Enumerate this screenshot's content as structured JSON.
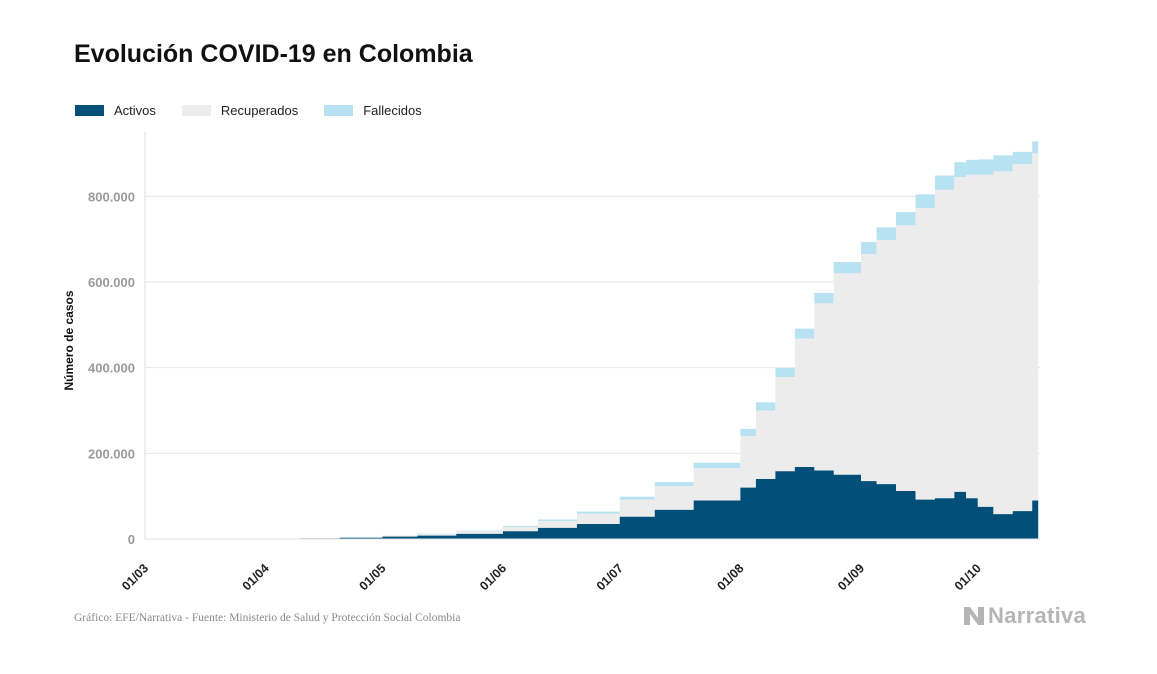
{
  "title": "Evolución COVID-19 en Colombia",
  "source": "Gráfico: EFE/Narrativa - Fuente: Ministerio de Salud y Protección Social Colombia",
  "logo_text": "Narrativa",
  "colors": {
    "activos": "#02507a",
    "recuperados": "#ececec",
    "fallecidos": "#b8e2f2",
    "grid": "#e6e6e6"
  },
  "chart_data": {
    "type": "area",
    "stacked": true,
    "title": "Evolución COVID-19 en Colombia",
    "xlabel": "",
    "ylabel": "Número de casos",
    "ylim": [
      0,
      950000
    ],
    "yticks": [
      0,
      200000,
      400000,
      600000,
      800000
    ],
    "ytick_labels": [
      "0",
      "200.000",
      "400.000",
      "600.000",
      "800.000"
    ],
    "xlim": [
      "2020-03-01",
      "2020-10-17"
    ],
    "xticks": [
      "2020-03-01",
      "2020-04-01",
      "2020-05-01",
      "2020-06-01",
      "2020-07-01",
      "2020-08-01",
      "2020-09-01",
      "2020-10-01"
    ],
    "xtick_labels": [
      "01/03",
      "01/04",
      "01/05",
      "01/06",
      "01/07",
      "01/08",
      "01/09",
      "01/10"
    ],
    "grid": "horizontal",
    "legend": "top-left",
    "x": [
      "2020-03-06",
      "2020-03-15",
      "2020-03-25",
      "2020-04-01",
      "2020-04-10",
      "2020-04-20",
      "2020-05-01",
      "2020-05-10",
      "2020-05-20",
      "2020-06-01",
      "2020-06-10",
      "2020-06-20",
      "2020-07-01",
      "2020-07-10",
      "2020-07-20",
      "2020-08-01",
      "2020-08-05",
      "2020-08-10",
      "2020-08-15",
      "2020-08-20",
      "2020-08-25",
      "2020-09-01",
      "2020-09-05",
      "2020-09-10",
      "2020-09-15",
      "2020-09-20",
      "2020-09-25",
      "2020-09-28",
      "2020-10-01",
      "2020-10-05",
      "2020-10-10",
      "2020-10-15"
    ],
    "series": [
      {
        "name": "Activos",
        "values": [
          0,
          100,
          400,
          800,
          1600,
          2800,
          5500,
          8000,
          12000,
          18000,
          26000,
          35000,
          52000,
          68000,
          90000,
          120000,
          140000,
          158000,
          168000,
          160000,
          150000,
          135000,
          128000,
          112000,
          92000,
          95000,
          110000,
          95000,
          75000,
          58000,
          65000,
          90000
        ]
      },
      {
        "name": "Recuperados",
        "values": [
          0,
          0,
          0,
          100,
          400,
          700,
          1900,
          3500,
          6000,
          10000,
          16000,
          24000,
          40000,
          55000,
          75000,
          120000,
          160000,
          220000,
          300000,
          390000,
          470000,
          530000,
          570000,
          620000,
          680000,
          720000,
          735000,
          755000,
          775000,
          800000,
          810000,
          810000
        ]
      },
      {
        "name": "Fallecidos",
        "values": [
          0,
          0,
          0,
          100,
          200,
          300,
          600,
          1000,
          1600,
          2400,
          3500,
          5000,
          7000,
          9800,
          13000,
          17000,
          19000,
          21000,
          23000,
          24500,
          26500,
          28500,
          29500,
          31000,
          32500,
          33500,
          34500,
          35000,
          36000,
          37500,
          28500,
          28000
        ]
      }
    ]
  }
}
